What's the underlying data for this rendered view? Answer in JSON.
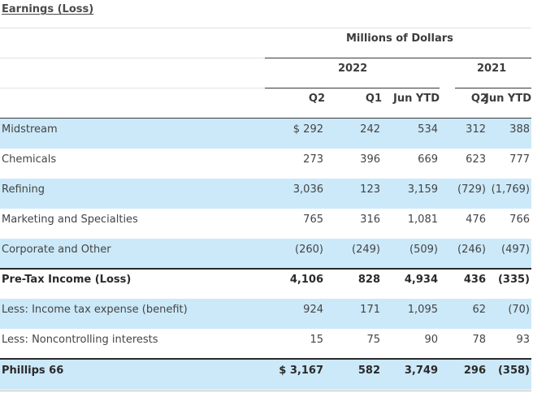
{
  "title": "Earnings (Loss)",
  "units_header": "Millions of Dollars",
  "year_headers": [
    "2022",
    "2021"
  ],
  "column_headers": [
    "Q2",
    "Q1",
    "Jun YTD",
    "Q2",
    "Jun YTD"
  ],
  "rows": [
    {
      "label": "Midstream",
      "values": [
        "$ 292",
        "242",
        "534",
        "312",
        "388"
      ]
    },
    {
      "label": "Chemicals",
      "values": [
        "273",
        "396",
        "669",
        "623",
        "777"
      ]
    },
    {
      "label": "Refining",
      "values": [
        "3,036",
        "123",
        "3,159",
        "(729)",
        "(1,769)"
      ]
    },
    {
      "label": "Marketing and Specialties",
      "values": [
        "765",
        "316",
        "1,081",
        "476",
        "766"
      ]
    },
    {
      "label": "Corporate and Other",
      "values": [
        "(260)",
        "(249)",
        "(509)",
        "(246)",
        "(497)"
      ]
    },
    {
      "label": "Pre-Tax Income (Loss)",
      "values": [
        "4,106",
        "828",
        "4,934",
        "436",
        "(335)"
      ]
    },
    {
      "label": "Less: Income tax expense (benefit)",
      "values": [
        "924",
        "171",
        "1,095",
        "62",
        "(70)"
      ]
    },
    {
      "label": "Less: Noncontrolling interests",
      "values": [
        "15",
        "75",
        "90",
        "78",
        "93"
      ]
    },
    {
      "label": "Phillips 66",
      "values": [
        "$ 3,167",
        "582",
        "3,749",
        "296",
        "(358)"
      ]
    }
  ]
}
